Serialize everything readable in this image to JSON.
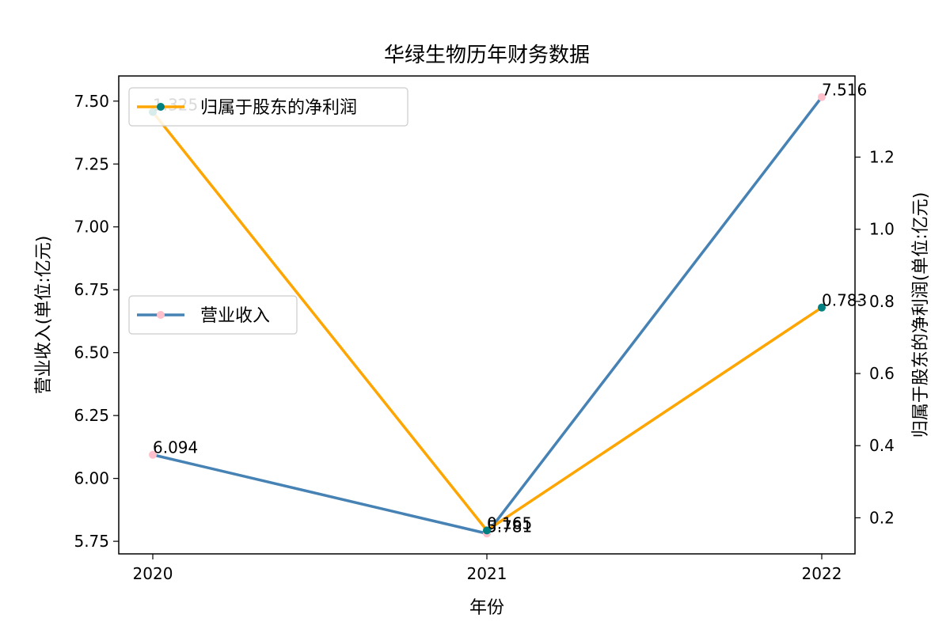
{
  "chart_data": {
    "type": "line",
    "title": "华绿生物历年财务数据",
    "xlabel": "年份",
    "ylabel": "营业收入(单位:亿元)",
    "y2label": "归属于股东的净利润(单位:亿元)",
    "categories": [
      "2020",
      "2021",
      "2022"
    ],
    "ylim": [
      5.7,
      7.6
    ],
    "y2lim": [
      0.1,
      1.425
    ],
    "yticks": [
      "5.75",
      "6.00",
      "6.25",
      "6.50",
      "6.75",
      "7.00",
      "7.25",
      "7.50"
    ],
    "y2ticks": [
      "0.2",
      "0.4",
      "0.6",
      "0.8",
      "1.0",
      "1.2"
    ],
    "series": [
      {
        "name": "营业收入",
        "axis": "left",
        "values": [
          6.094,
          5.781,
          7.516
        ],
        "labels": [
          "6.094",
          "5.781",
          "7.516"
        ],
        "color": "#4682b4",
        "marker_color": "#ffc0cb"
      },
      {
        "name": "归属于股东的净利润",
        "axis": "right",
        "values": [
          1.325,
          0.165,
          0.783
        ],
        "labels": [
          "1.325",
          "0.165",
          "0.783"
        ],
        "color": "#ffa500",
        "marker_color": "#008080"
      }
    ],
    "legends": [
      {
        "series": 1,
        "placement": "upper-left"
      },
      {
        "series": 0,
        "placement": "center-left"
      }
    ],
    "grid": false
  }
}
